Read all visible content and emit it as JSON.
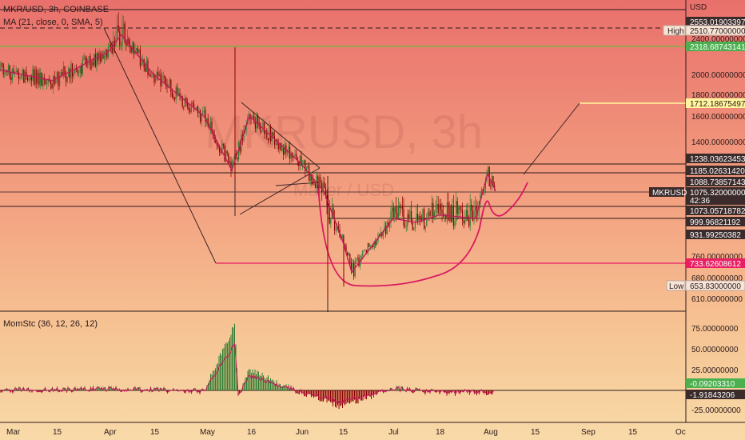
{
  "header": {
    "symbol_line": "MKR/USD, 3h, COINBASE",
    "ma_line": "MA (21, close, 0, SMA, 5)",
    "watermark_main": "MKRUSD, 3h",
    "watermark_sub": "Maker / USD",
    "currency": "USD"
  },
  "indicator": {
    "label": "MomStc (36, 12, 26, 12)"
  },
  "badges": {
    "high": "High",
    "low": "Low",
    "symbol": "MKRUSD",
    "countdown": "42:36"
  },
  "colors": {
    "price_candles_up": "#2e7d32",
    "price_candles_down": "#8b0000",
    "ma_line": "#c2185b",
    "cup_curve": "#d81b60",
    "support_line": "#e91e63",
    "target_line": "#fff59d",
    "dark_label_bg": "#3b2b2b",
    "green_label_bg": "#4caf50",
    "bg_top": "#e9706c",
    "bg_bottom": "#f8d9a6"
  },
  "chart_data": [
    {
      "type": "line",
      "title": "MKR/USD, 3h, COINBASE",
      "x_ticks": [
        "Mar",
        "15",
        "Apr",
        "15",
        "May",
        "16",
        "Jun",
        "15",
        "Jul",
        "18",
        "Aug",
        "15",
        "Sep",
        "15",
        "Oc"
      ],
      "y_ticks": [
        "2400.00000000",
        "2200.00000000",
        "2000.00000000",
        "1800.00000000",
        "1600.00000000",
        "1400.00000000",
        "760.00000000",
        "680.00000000",
        "610.00000000"
      ],
      "price_labels": [
        {
          "value": "2553.01903397",
          "style": "dark"
        },
        {
          "value": "2510.77000000",
          "style": "light",
          "badge": "High"
        },
        {
          "value": "2318.68743141",
          "style": "green"
        },
        {
          "value": "1712.18675497",
          "style": "yellow"
        },
        {
          "value": "1238.03623453",
          "style": "dark"
        },
        {
          "value": "1185.02631420",
          "style": "dark"
        },
        {
          "value": "1088.73857143",
          "style": "dark"
        },
        {
          "value": "1075.32000000",
          "style": "current",
          "badge": "MKRUSD"
        },
        {
          "value": "1073.05718782",
          "style": "dark"
        },
        {
          "value": "999.96821192",
          "style": "dark"
        },
        {
          "value": "931.99250382",
          "style": "dark"
        },
        {
          "value": "733.62608612",
          "style": "pink"
        },
        {
          "value": "653.83000000",
          "style": "light",
          "badge": "Low"
        }
      ],
      "series": [
        {
          "name": "MA (21, close, 0, SMA, 5)",
          "x": [
            "Mar 01",
            "Mar 15",
            "Apr 01",
            "Apr 05",
            "Apr 15",
            "May 01",
            "May 10",
            "May 16",
            "Jun 01",
            "Jun 10",
            "Jun 15",
            "Jun 18",
            "Jul 01",
            "Jul 10",
            "Jul 18",
            "Jul 28",
            "Aug 01",
            "Aug 02"
          ],
          "values": [
            2050,
            1940,
            2250,
            2420,
            2000,
            1600,
            1200,
            1600,
            1250,
            1080,
            880,
            700,
            1000,
            980,
            1010,
            1000,
            1180,
            1080
          ]
        }
      ]
    },
    {
      "type": "line",
      "title": "MomStc (36, 12, 26, 12)",
      "y_ticks": [
        "75.00000000",
        "50.00000000",
        "25.00000000",
        "-25.00000000"
      ],
      "price_labels": [
        {
          "value": "-0.09203310",
          "style": "green"
        },
        {
          "value": "-1.91843206",
          "style": "dark"
        }
      ],
      "series": [
        {
          "name": "MomStc (36, 12, 26, 12)",
          "x": [
            "Mar 01",
            "Apr 01",
            "May 01",
            "May 12",
            "May 13",
            "May 16",
            "Jun 01",
            "Jun 15",
            "Jul 01",
            "Jul 18",
            "Aug 01"
          ],
          "values": [
            0,
            2,
            -1,
            80,
            -10,
            25,
            -2,
            -20,
            3,
            -3,
            -2
          ]
        }
      ]
    }
  ]
}
